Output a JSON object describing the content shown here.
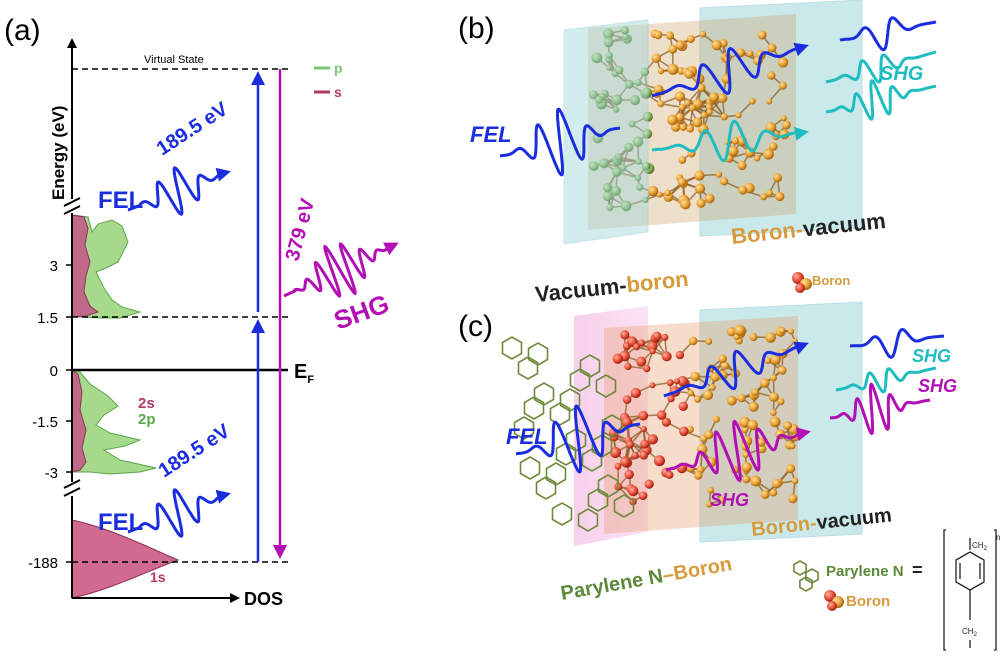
{
  "panel_a": {
    "panel_label": "(a)",
    "y_axis_label": "Energy (eV)",
    "x_axis_label": "DOS",
    "ticks": [
      "3",
      "1.5",
      "0",
      "-1.5",
      "-3",
      "-188"
    ],
    "fermi_label": "E",
    "fermi_sub": "F",
    "virtual_state": "Virtual State",
    "legend": [
      {
        "label": "p",
        "color": "#7cc576"
      },
      {
        "label": "s",
        "color": "#b03a66"
      }
    ],
    "orbital_2s": "2s",
    "orbital_2p": "2p",
    "orbital_1s": "1s",
    "fel_label": "FEL",
    "photon_energy": "189.5 eV",
    "shg_energy": "379 eV",
    "shg_label": "SHG",
    "colors": {
      "fel": "#1a2ee0",
      "shg": "#b20fb5",
      "s": "#b03a66",
      "p": "#7cc576"
    }
  },
  "panel_b": {
    "panel_label": "(b)",
    "fel_label": "FEL",
    "shg_label": "SHG",
    "interface_left_a": "Vacuum-",
    "interface_left_b": "boron",
    "interface_right_a": "Boron-",
    "interface_right_b": "vacuum",
    "legend_boron": "Boron"
  },
  "panel_c": {
    "panel_label": "(c)",
    "fel_label": "FEL",
    "shg_label_1": "SHG",
    "shg_label_2": "SHG",
    "shg_label_3": "SHG",
    "interface_left_a": "Parylene N",
    "interface_left_b": "–Boron",
    "interface_right_a": "Boron-",
    "interface_right_b": "vacuum",
    "legend_parylene": "Parylene N",
    "legend_equals": "=",
    "legend_boron": "Boron",
    "ch2_top": "CH",
    "ch2_bottom": "CH",
    "ch2_sub": "2",
    "n_sub": "n"
  }
}
